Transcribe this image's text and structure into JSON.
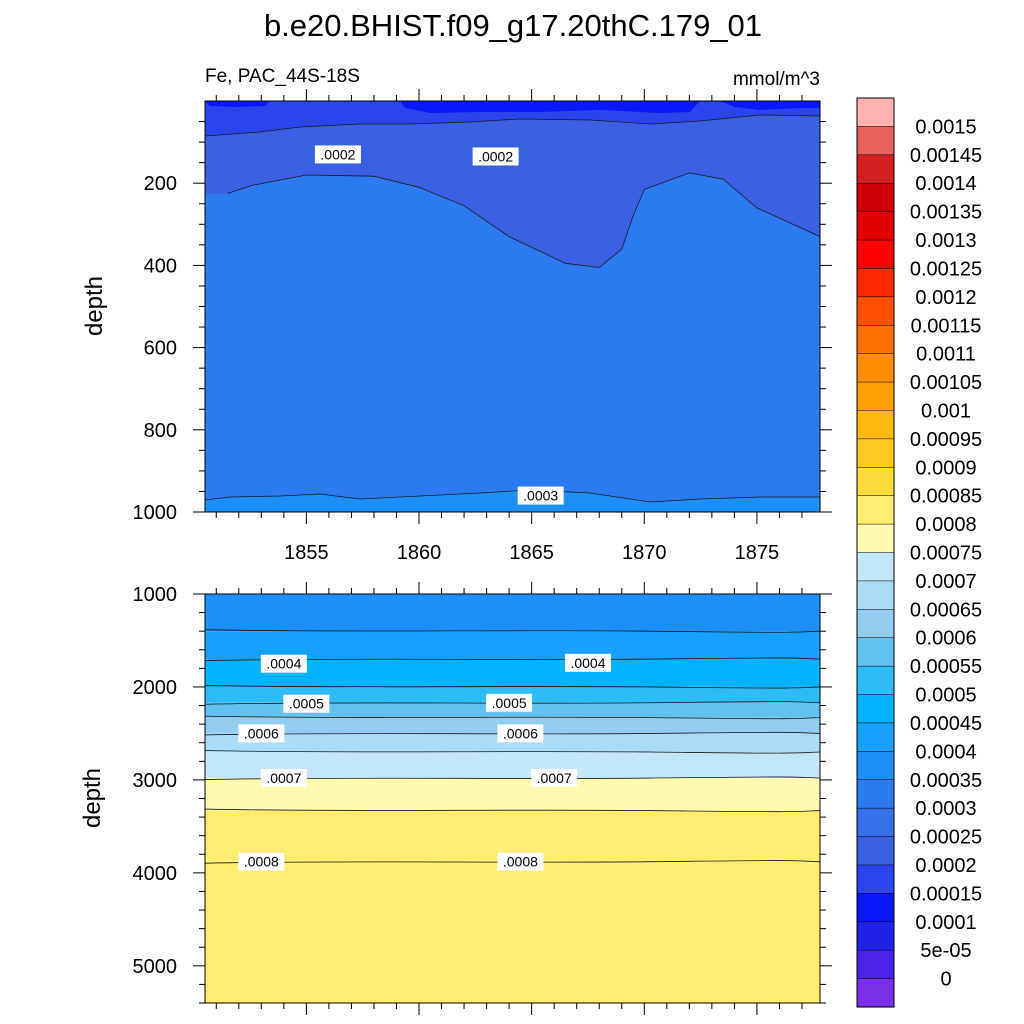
{
  "title": "b.e20.BHIST.f09_g17.20thC.179_01",
  "subtitle_left": "Fe, PAC_44S-18S",
  "subtitle_right": "mmol/m^3",
  "chart_data": [
    {
      "type": "heatmap",
      "panel": "upper",
      "ylabel": "depth",
      "xlabel": "",
      "xlim": [
        1850.5,
        1877.8
      ],
      "ylim": [
        1000,
        0
      ],
      "x_ticks": [
        1855,
        1860,
        1865,
        1870,
        1875
      ],
      "x_tick_labels": [
        "1855",
        "1860",
        "1865",
        "1870",
        "1875"
      ],
      "y_ticks": [
        200,
        400,
        600,
        800,
        1000
      ],
      "y_tick_labels": [
        "200",
        "400",
        "600",
        "800",
        "1000"
      ],
      "contour_levels": [
        0.00015,
        0.0002,
        0.00025,
        0.0003
      ],
      "contour_labels": [
        {
          "text": ".0002",
          "x": 1856.4,
          "y": 130
        },
        {
          "text": ".0002",
          "x": 1863.4,
          "y": 135
        },
        {
          "text": ".0003",
          "x": 1865.4,
          "y": 960
        }
      ],
      "boundary_025_depth": {
        "x": [
          1851.5,
          1852.6,
          1855.0,
          1858.0,
          1860.0,
          1862.0,
          1864.0,
          1866.5,
          1868.0,
          1869.0,
          1869.5,
          1870.0,
          1872.0,
          1873.5,
          1875.0,
          1877.8
        ],
        "y": [
          225,
          205,
          180,
          183,
          210,
          255,
          330,
          395,
          405,
          360,
          280,
          215,
          175,
          190,
          260,
          330
        ]
      }
    },
    {
      "type": "heatmap",
      "panel": "lower",
      "ylabel": "depth",
      "xlabel": "",
      "xlim": [
        1850.5,
        1877.8
      ],
      "ylim": [
        5400,
        1000
      ],
      "y_ticks": [
        1000,
        2000,
        3000,
        4000,
        5000
      ],
      "y_tick_labels": [
        "1000",
        "2000",
        "3000",
        "4000",
        "5000"
      ],
      "contour_levels": [
        0.00035,
        0.0004,
        0.00045,
        0.0005,
        0.00055,
        0.0006,
        0.00065,
        0.0007,
        0.00075,
        0.0008
      ],
      "contour_depths": [
        1400,
        1700,
        2000,
        2170,
        2330,
        2500,
        2700,
        2980,
        3330,
        3880
      ],
      "contour_labels": [
        {
          "text": ".0004",
          "x": 1854.0,
          "y": 1750
        },
        {
          "text": ".0004",
          "x": 1867.5,
          "y": 1740
        },
        {
          "text": ".0005",
          "x": 1855.0,
          "y": 2180
        },
        {
          "text": ".0005",
          "x": 1864.0,
          "y": 2170
        },
        {
          "text": ".0006",
          "x": 1853.0,
          "y": 2500
        },
        {
          "text": ".0006",
          "x": 1864.5,
          "y": 2500
        },
        {
          "text": ".0007",
          "x": 1854.0,
          "y": 2980
        },
        {
          "text": ".0007",
          "x": 1866.0,
          "y": 2980
        },
        {
          "text": ".0008",
          "x": 1853.0,
          "y": 3880
        },
        {
          "text": ".0008",
          "x": 1864.5,
          "y": 3880
        }
      ]
    }
  ],
  "colorbar": {
    "labels": [
      "0.0015",
      "0.00145",
      "0.0014",
      "0.00135",
      "0.0013",
      "0.00125",
      "0.0012",
      "0.00115",
      "0.0011",
      "0.00105",
      "0.001",
      "0.00095",
      "0.0009",
      "0.00085",
      "0.0008",
      "0.00075",
      "0.0007",
      "0.00065",
      "0.0006",
      "0.00055",
      "0.0005",
      "0.00045",
      "0.0004",
      "0.00035",
      "0.0003",
      "0.00025",
      "0.0002",
      "0.00015",
      "0.0001",
      "5e-05",
      "0"
    ],
    "colors": [
      "#FFB3B3",
      "#E66060",
      "#D22020",
      "#CC0000",
      "#E00000",
      "#FF0000",
      "#FF2800",
      "#FF5000",
      "#FF7000",
      "#FF8C00",
      "#FFA000",
      "#FFB810",
      "#FFC820",
      "#FFDC3C",
      "#FFED70",
      "#FFFAB0",
      "#C4E6F6",
      "#ABDCF4",
      "#92CDF0",
      "#63C1F2",
      "#2DBAF5",
      "#00B2FF",
      "#18A0FF",
      "#1E8EF8",
      "#2C7AF0",
      "#3470E8",
      "#3A60E2",
      "#2A44EE",
      "#0A18F8",
      "#2020E6",
      "#4A22E8",
      "#7A30E6"
    ]
  }
}
